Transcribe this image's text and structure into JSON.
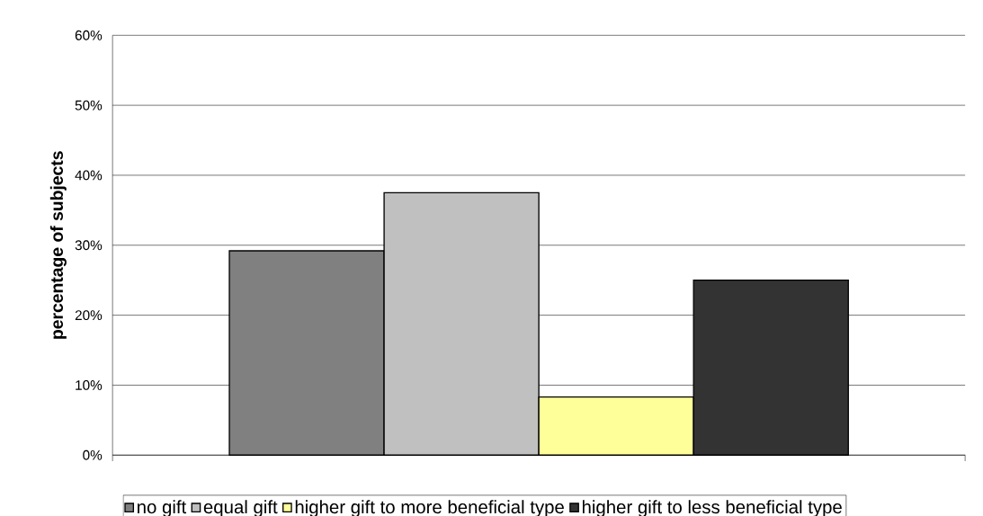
{
  "chart_data": {
    "type": "bar",
    "ylabel": "percentage of subjects",
    "categories": [
      null
    ],
    "series": [
      {
        "name": "no gift",
        "color": "#808080",
        "values": [
          29.2
        ]
      },
      {
        "name": "equal gift",
        "color": "#c0c0c0",
        "values": [
          37.5
        ]
      },
      {
        "name": "higher gift to more beneficial type",
        "color": "#ffff99",
        "values": [
          8.3
        ]
      },
      {
        "name": "higher gift to less beneficial type",
        "color": "#333333",
        "values": [
          25
        ]
      }
    ],
    "ylim": [
      0,
      60
    ],
    "yticks": [
      {
        "value": 0,
        "label": "0%"
      },
      {
        "value": 10,
        "label": "10%"
      },
      {
        "value": 20,
        "label": "20%"
      },
      {
        "value": 30,
        "label": "30%"
      },
      {
        "value": 40,
        "label": "40%"
      },
      {
        "value": 50,
        "label": "50%"
      },
      {
        "value": 60,
        "label": "60%"
      }
    ],
    "grid": "y",
    "legend": "bottom",
    "tick_labels": "y"
  }
}
